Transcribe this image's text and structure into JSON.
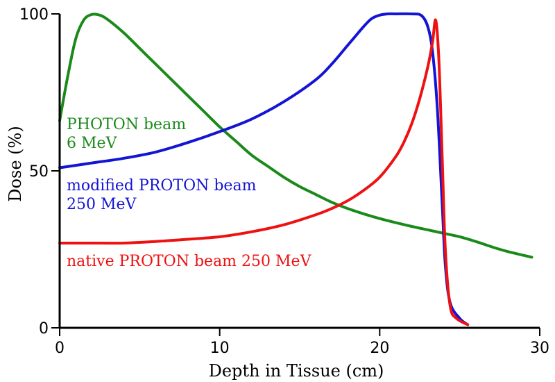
{
  "chart_data": {
    "type": "line",
    "title": "",
    "xlabel": "Depth in Tissue (cm)",
    "ylabel": "Dose (%)",
    "xlim": [
      0,
      30
    ],
    "ylim": [
      0,
      100
    ],
    "xticks": [
      0,
      10,
      20,
      30
    ],
    "yticks": [
      0,
      50,
      100
    ],
    "grid": false,
    "legend": "inline",
    "series": [
      {
        "name": "PHOTON beam 6 MeV",
        "label_lines": [
          "PHOTON beam",
          "6 MeV"
        ],
        "color": "#1a8a1a",
        "x": [
          0,
          0.5,
          1,
          1.5,
          2,
          2.5,
          3,
          4,
          5,
          6,
          7,
          8,
          9,
          10,
          11,
          12,
          13,
          14,
          15,
          16,
          17,
          18,
          19,
          20,
          21,
          22,
          23,
          24,
          25,
          26,
          27,
          28,
          29.5
        ],
        "y": [
          66,
          80,
          92,
          98,
          99.8,
          99.6,
          98.2,
          94,
          89,
          84,
          79,
          74,
          69,
          64,
          59.5,
          55,
          51.5,
          48,
          45,
          42.5,
          40,
          38,
          36.3,
          34.8,
          33.5,
          32.3,
          31.2,
          30.1,
          29,
          27.5,
          25.8,
          24.3,
          22.5
        ]
      },
      {
        "name": "modified PROTON beam 250 MeV",
        "label_lines": [
          "modified PROTON beam",
          "250 MeV"
        ],
        "color": "#1414d4",
        "x": [
          0,
          2,
          4,
          6,
          8,
          10,
          12,
          14,
          16,
          17,
          18,
          18.5,
          19,
          19.5,
          20,
          20.5,
          21,
          22,
          22.6,
          23,
          23.3,
          23.6,
          23.9,
          24.1,
          24.4,
          25,
          25.5
        ],
        "y": [
          51,
          52.5,
          54,
          56,
          59,
          62.5,
          66.5,
          72,
          79,
          84,
          90,
          93,
          96,
          98.5,
          99.6,
          100,
          100,
          100,
          99.5,
          96,
          88,
          70,
          40,
          20,
          8,
          3,
          1
        ]
      },
      {
        "name": "native PROTON beam 250 MeV",
        "label_lines": [
          "native PROTON beam 250 MeV"
        ],
        "color": "#ee1111",
        "x": [
          0,
          1,
          2,
          4,
          6,
          8,
          10,
          12,
          14,
          16,
          17,
          18,
          19,
          20,
          21,
          21.5,
          22,
          22.5,
          23,
          23.3,
          23.5,
          23.7,
          23.9,
          24.1,
          24.4,
          24.8,
          25.5
        ],
        "y": [
          27,
          27,
          27,
          27,
          27.5,
          28.2,
          29,
          30.6,
          32.8,
          36,
          38,
          40.5,
          43.8,
          48,
          54.5,
          59,
          65,
          73,
          83,
          91,
          98,
          85,
          55,
          25,
          7,
          3,
          1
        ]
      }
    ]
  }
}
